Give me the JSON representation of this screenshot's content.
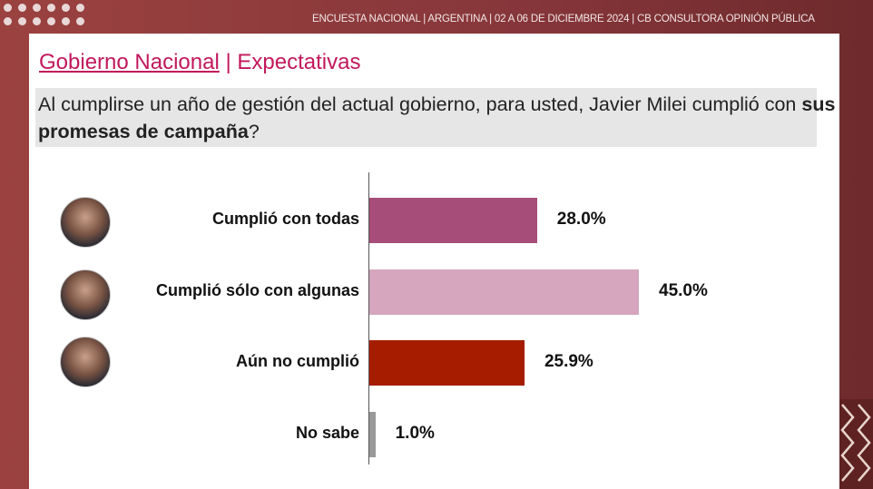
{
  "header": {
    "text": "ENCUESTA NACIONAL  |  ARGENTINA  | 02 A 06 DE DICIEMBRE 2024 | CB CONSULTORA OPINIÓN PÚBLICA"
  },
  "title": {
    "section": "Gobierno Nacional",
    "separator": " | ",
    "topic": "Expectativas"
  },
  "question": {
    "part1": "Al cumplirse un año de gestión del actual gobierno, para usted, Javier Milei cumplió con ",
    "bold": "sus promesas de campaña",
    "part2": "?"
  },
  "chart_data": {
    "type": "bar",
    "orientation": "horizontal",
    "categories": [
      "Cumplió con todas",
      "Cumplió sólo con algunas",
      "Aún no cumplió",
      "No sabe"
    ],
    "values": [
      28.0,
      45.0,
      25.9,
      1.0
    ],
    "labels": [
      "28.0%",
      "45.0%",
      "25.9%",
      "1.0%"
    ],
    "colors": [
      "#a64d79",
      "#d5a6bd",
      "#a61c00",
      "#999999"
    ],
    "xlim": [
      0,
      50
    ],
    "grid": false,
    "legend": "none"
  }
}
